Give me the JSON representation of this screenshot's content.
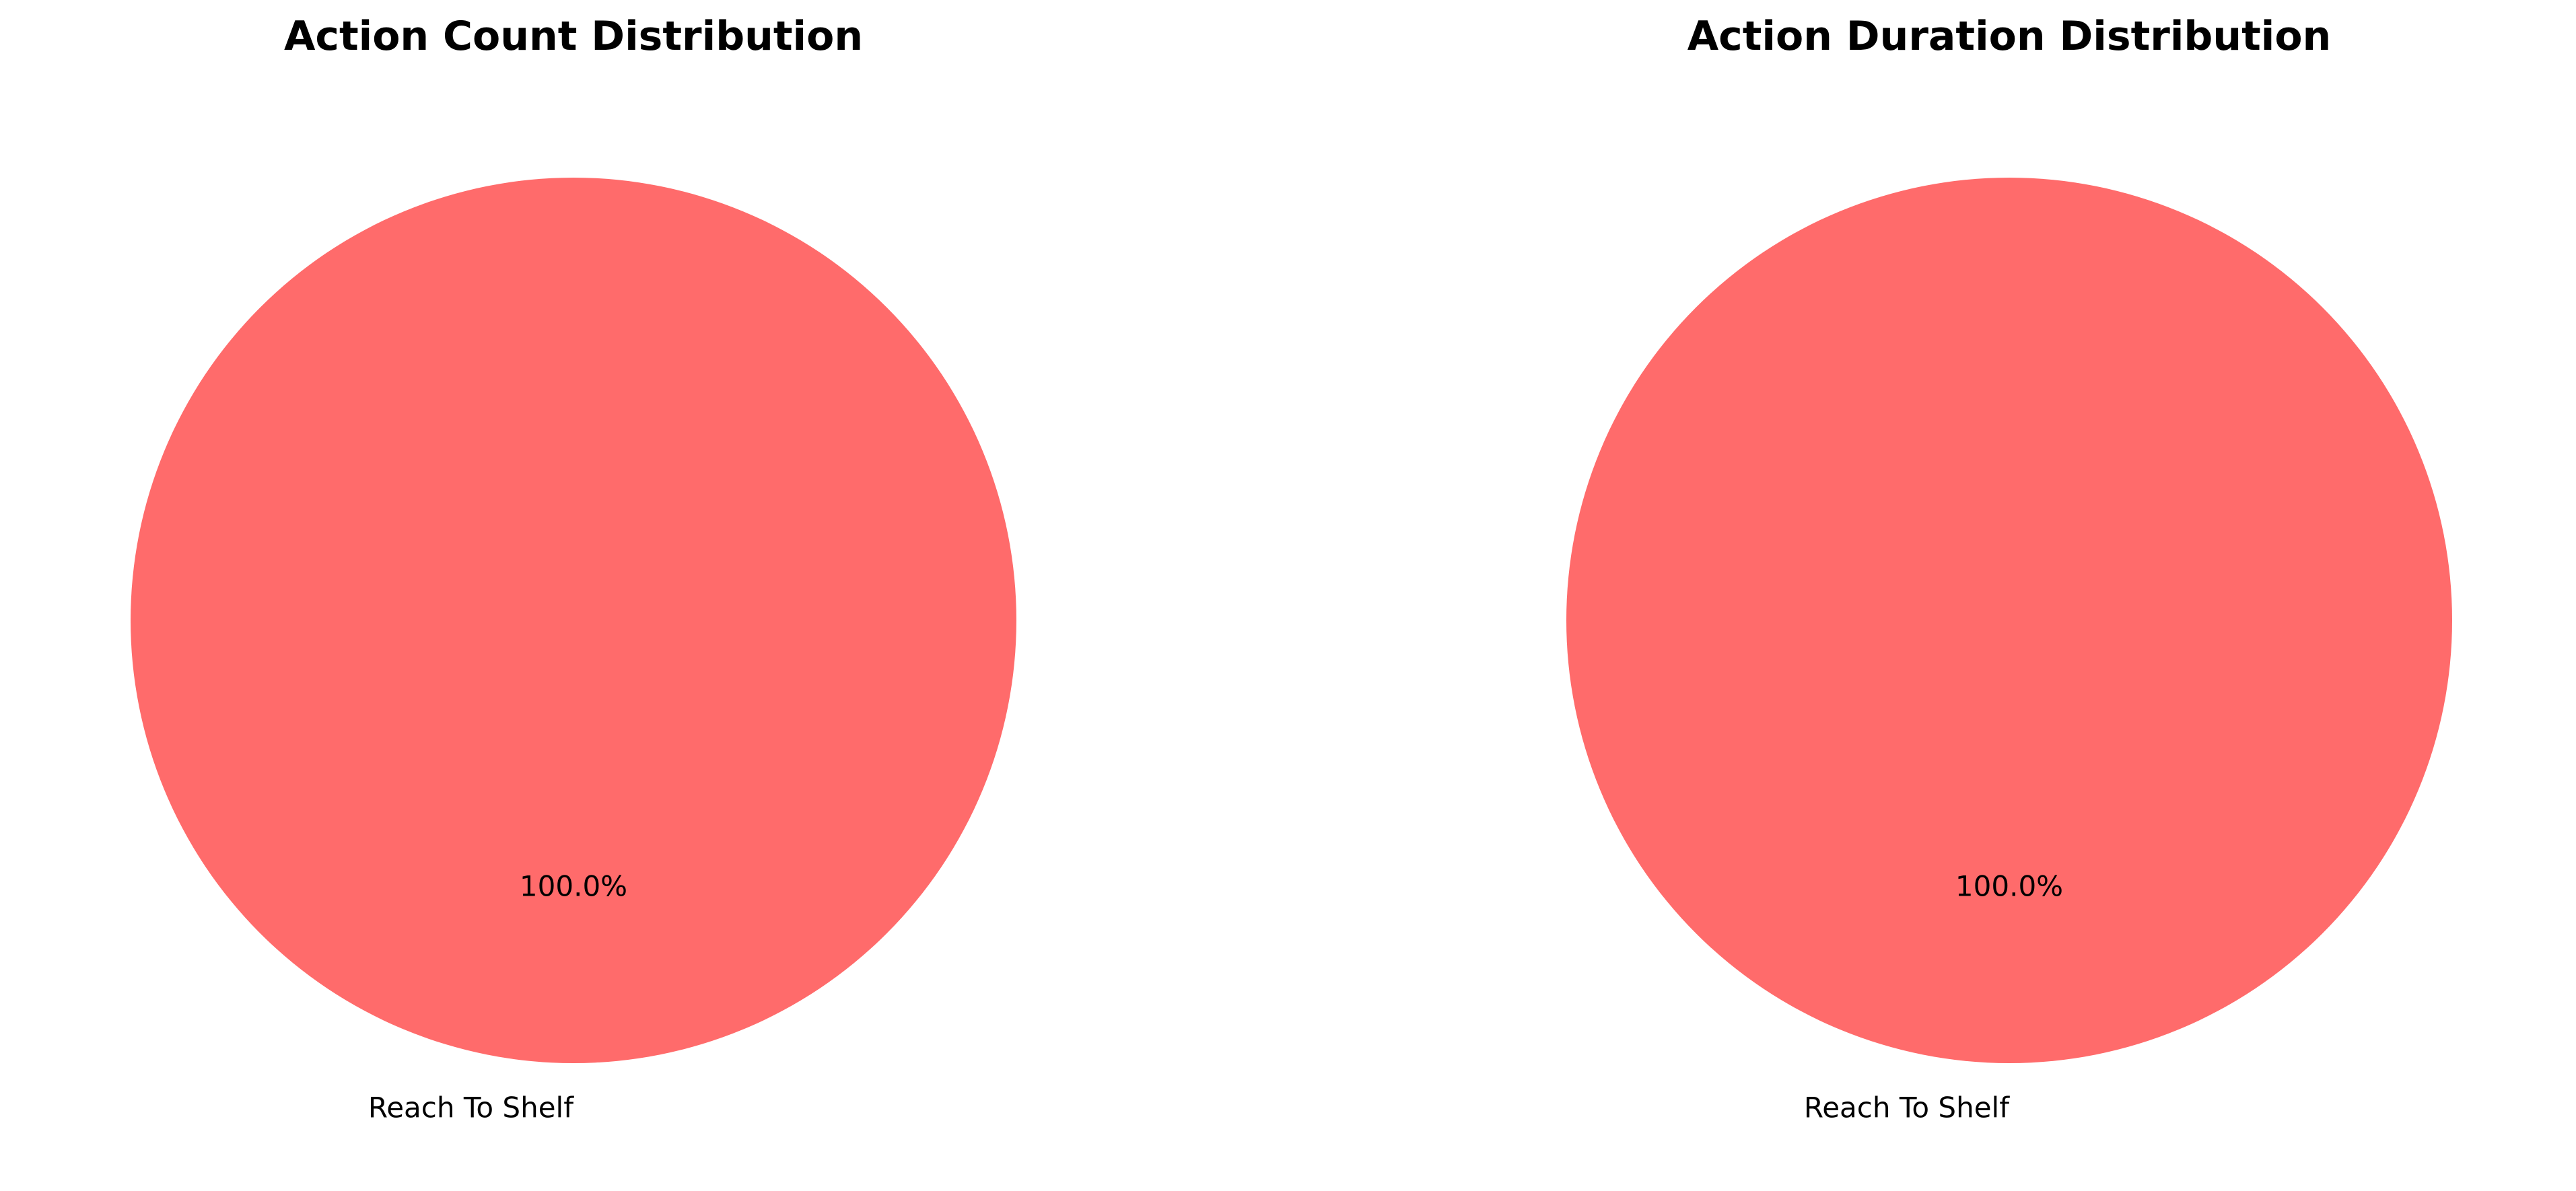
{
  "chart_data": [
    {
      "type": "pie",
      "title": "Action Count Distribution",
      "slices": [
        {
          "label": "Reach To Shelf",
          "value": 100.0,
          "pct_label": "100.0%",
          "color": "#ff6b6b"
        }
      ]
    },
    {
      "type": "pie",
      "title": "Action Duration Distribution",
      "slices": [
        {
          "label": "Reach To Shelf",
          "value": 100.0,
          "pct_label": "100.0%",
          "color": "#ff6b6b"
        }
      ]
    }
  ]
}
